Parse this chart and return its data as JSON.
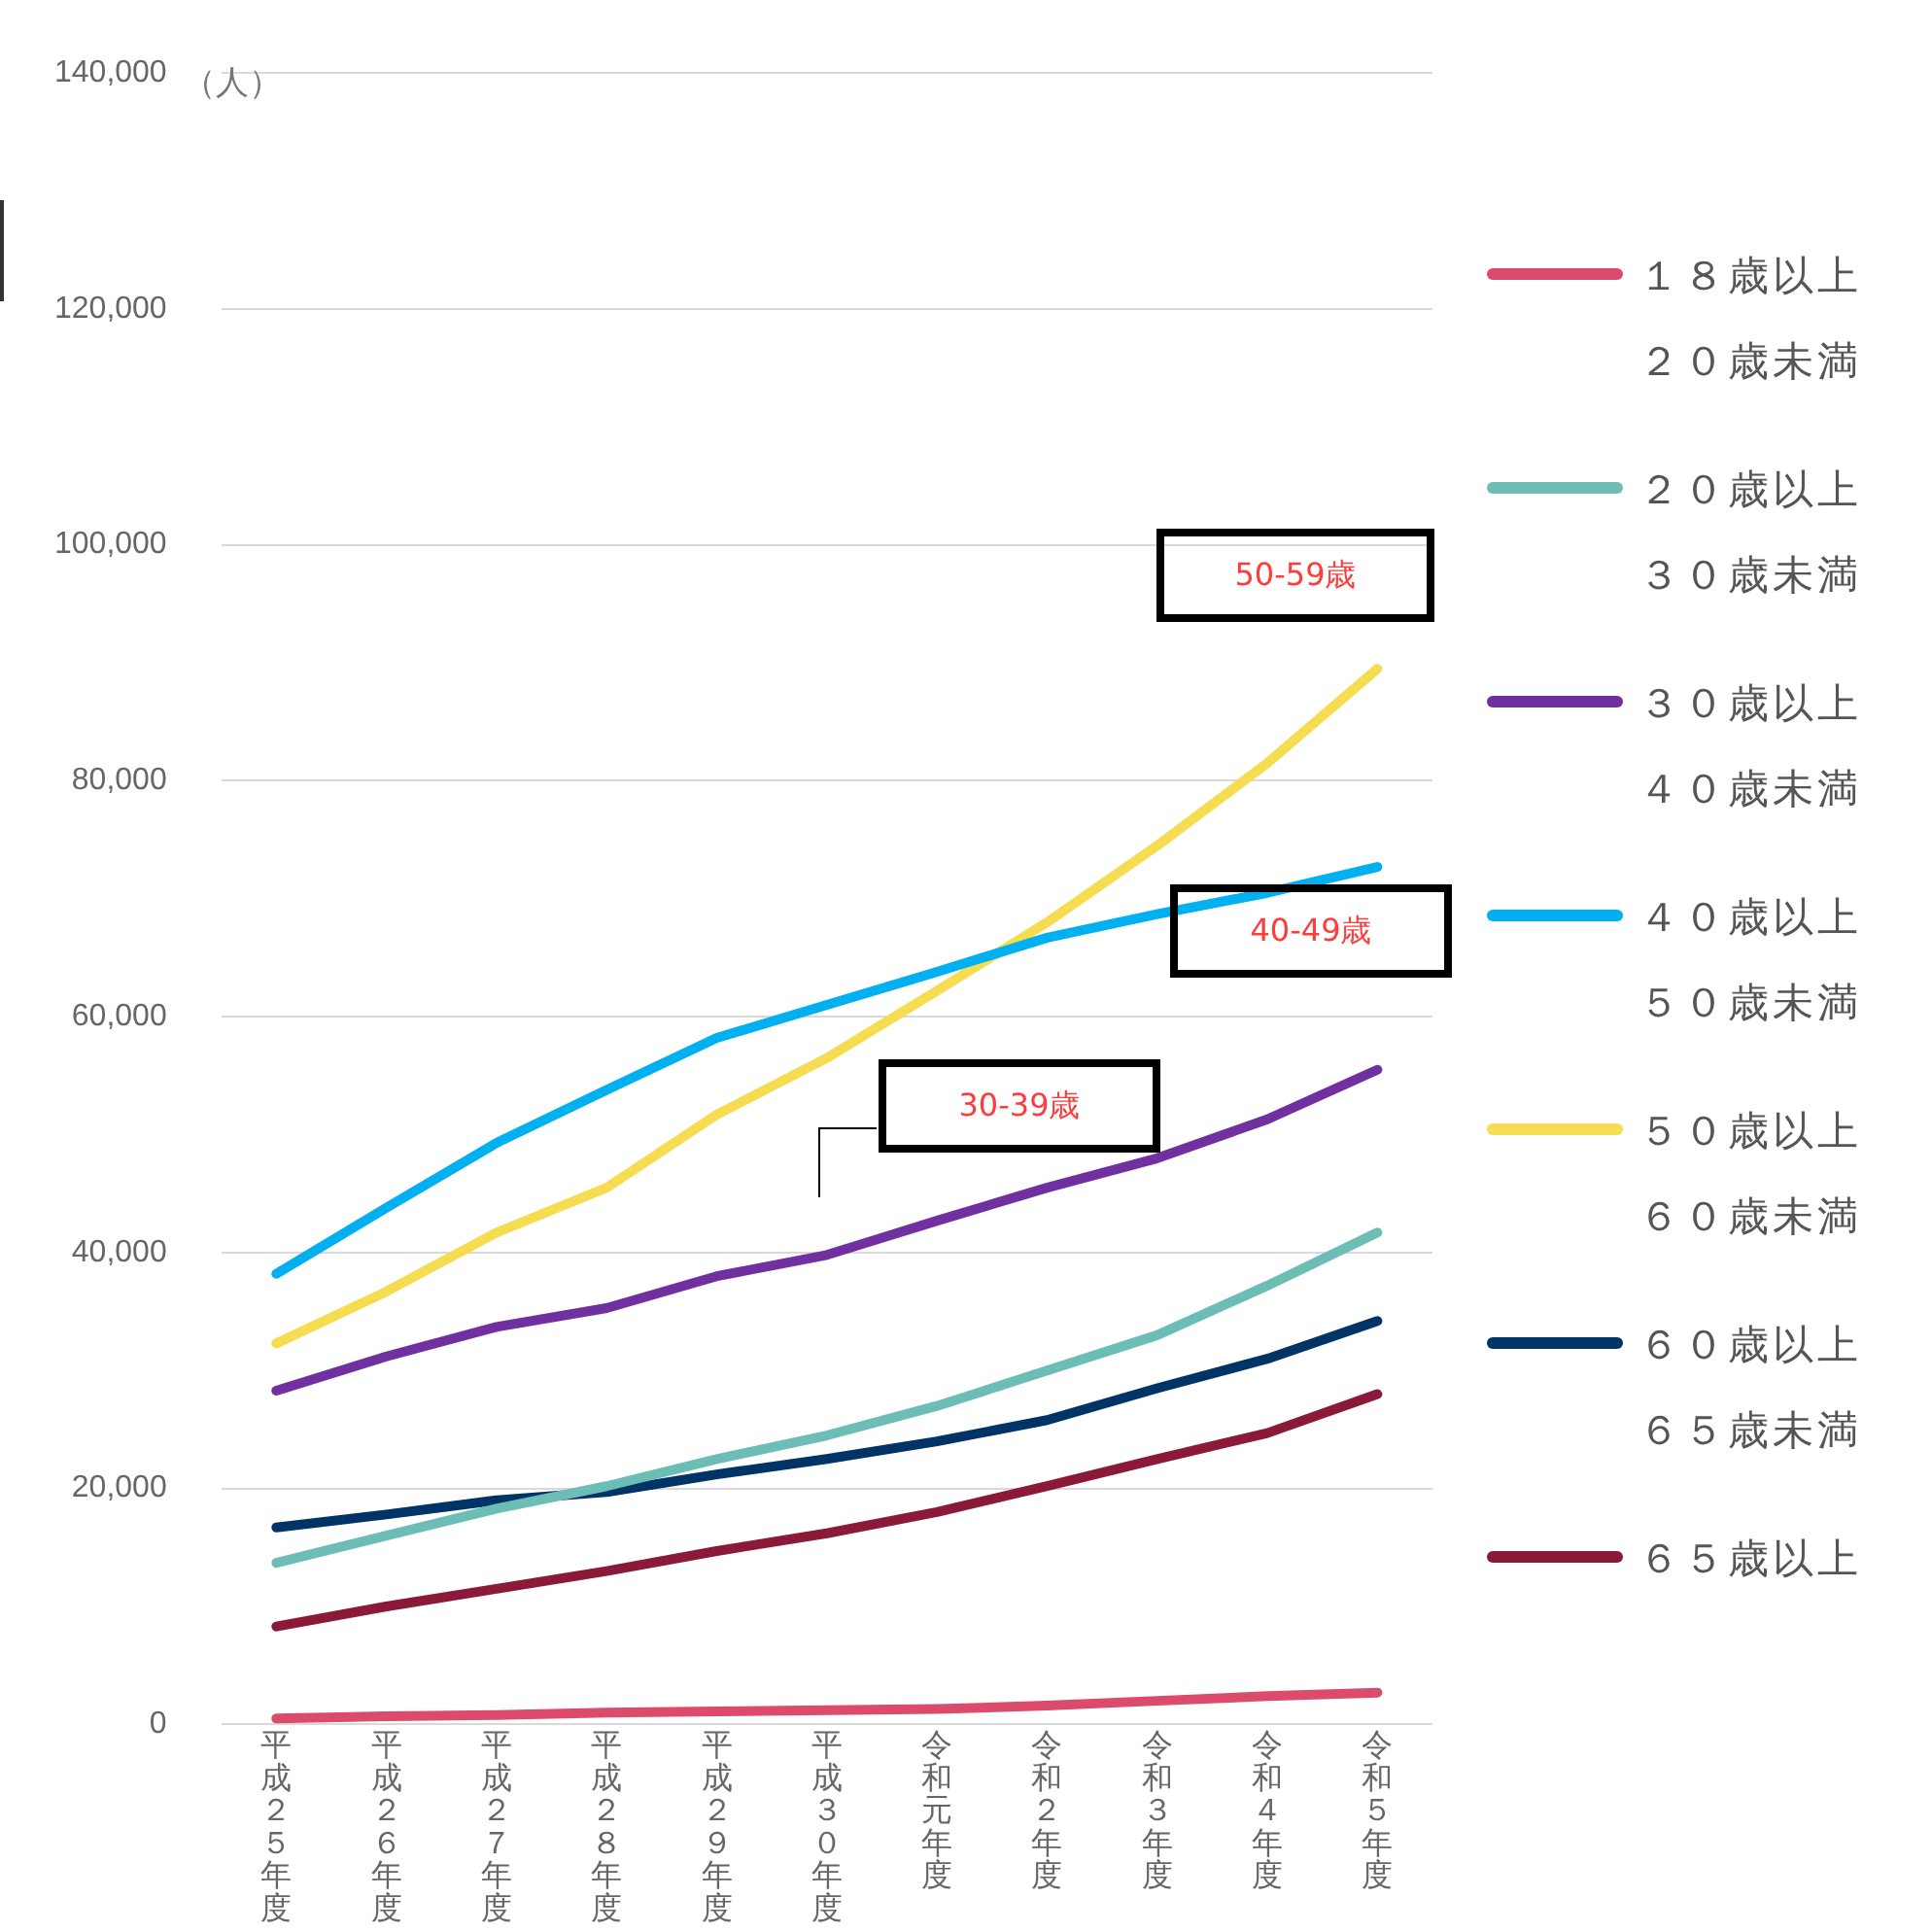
{
  "chart_data": {
    "type": "line",
    "ylabel": "（人）",
    "categories": [
      "平成２５年度",
      "平成２６年度",
      "平成２７年度",
      "平成２８年度",
      "平成２９年度",
      "平成３０年度",
      "令和元年度",
      "令和２年度",
      "令和３年度",
      "令和４年度",
      "令和５年度"
    ],
    "series": [
      {
        "name": "１８歳以上２０歳未満",
        "color": "#dc4a6c",
        "values": [
          500,
          700,
          800,
          1000,
          1100,
          1200,
          1300,
          1600,
          2000,
          2400,
          2700
        ]
      },
      {
        "name": "２０歳以上３０歳未満",
        "color": "#6cbdb5",
        "values": [
          13700,
          16000,
          18300,
          20200,
          22500,
          24500,
          27000,
          30000,
          33000,
          37200,
          41700
        ]
      },
      {
        "name": "３０歳以上４０歳未満",
        "color": "#7030a0",
        "values": [
          28300,
          31200,
          33700,
          35300,
          38000,
          39800,
          42700,
          45500,
          48000,
          51300,
          55500
        ]
      },
      {
        "name": "４０歳以上５０歳未満",
        "color": "#00b0f0",
        "values": [
          38200,
          43800,
          49300,
          53800,
          58200,
          61000,
          63800,
          66700,
          68700,
          70500,
          72700
        ]
      },
      {
        "name": "５０歳以上６０歳未満",
        "color": "#f5dc50",
        "values": [
          32300,
          36700,
          41700,
          45500,
          51700,
          56500,
          62200,
          68000,
          74500,
          81500,
          89500
        ]
      },
      {
        "name": "６０歳以上６５歳未満",
        "color": "#003366",
        "values": [
          16700,
          17800,
          19000,
          19700,
          21200,
          22500,
          24000,
          25800,
          28500,
          31000,
          34200
        ]
      },
      {
        "name": "６５歳以上",
        "color": "#8b1a3a",
        "values": [
          8300,
          10000,
          11500,
          13000,
          14700,
          16200,
          18000,
          20200,
          22500,
          24700,
          28000
        ]
      }
    ],
    "ylim": [
      0,
      140000
    ],
    "yticks": [
      {
        "value": 0,
        "label": "0"
      },
      {
        "value": 20000,
        "label": "20,000"
      },
      {
        "value": 40000,
        "label": "40,000"
      },
      {
        "value": 60000,
        "label": "60,000"
      },
      {
        "value": 80000,
        "label": "80,000"
      },
      {
        "value": 100000,
        "label": "100,000"
      },
      {
        "value": 120000,
        "label": "120,000"
      },
      {
        "value": 140000,
        "label": "140,000"
      }
    ],
    "grid": "y",
    "legend": "right",
    "marker": "none",
    "line_style": "solid",
    "annotations": [
      "50-59歳",
      "40-49歳",
      "30-39歳"
    ]
  }
}
